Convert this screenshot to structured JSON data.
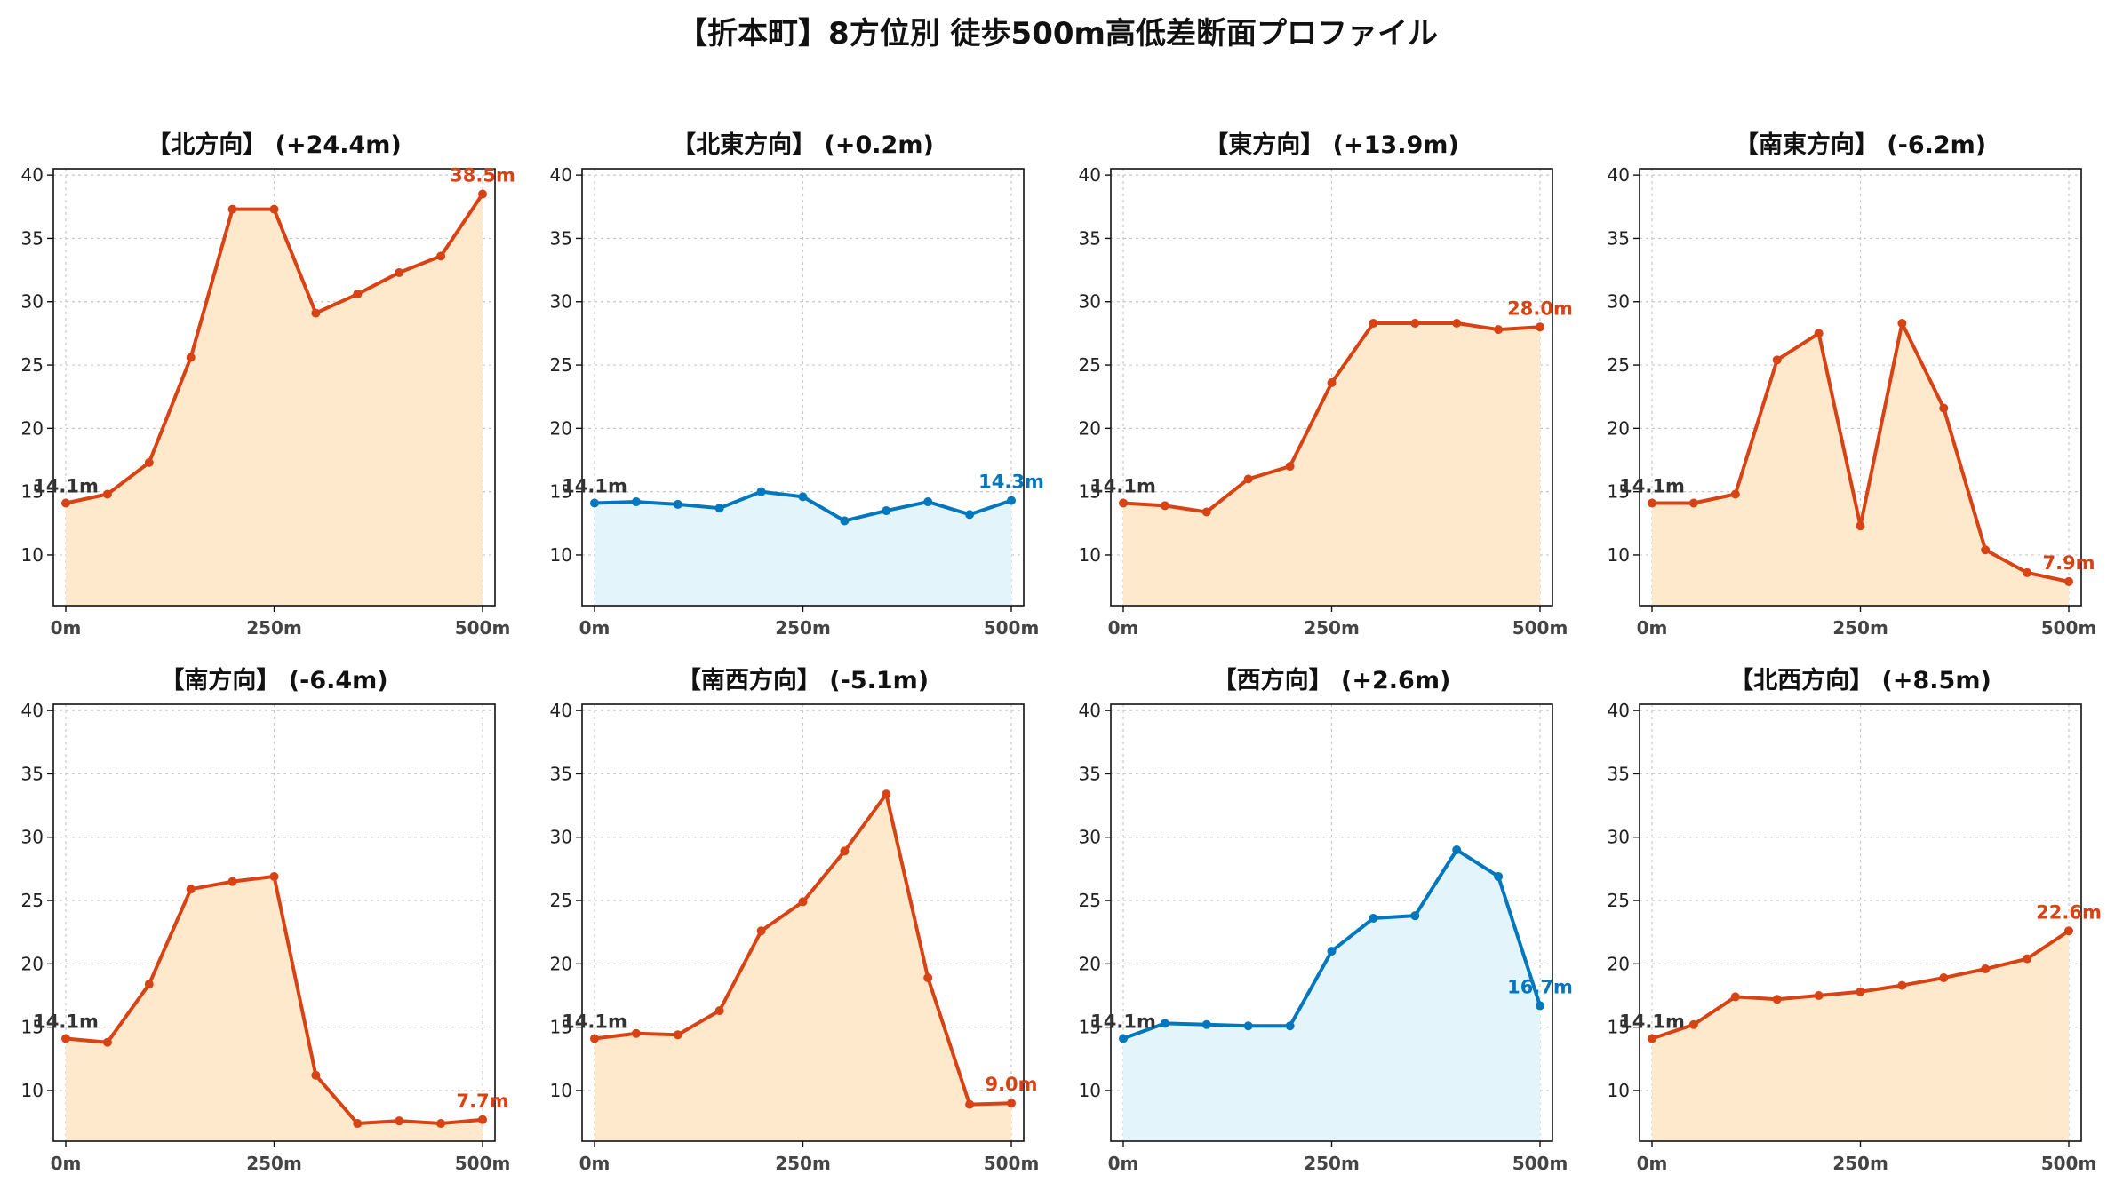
{
  "title": "【折本町】8方位別 徒歩500m高低差断面プロファイル",
  "colors": {
    "up_line": "#d84315",
    "up_fill": "#ffe9cc",
    "flat_line": "#0277bd",
    "flat_fill": "#e3f4fb",
    "start_label": "#333333"
  },
  "chart_data": [
    {
      "type": "area",
      "title": "【北方向】 (+24.4m)",
      "x": [
        0,
        50,
        100,
        150,
        200,
        250,
        300,
        350,
        400,
        450,
        500
      ],
      "values": [
        14.1,
        14.8,
        17.3,
        25.6,
        37.3,
        37.3,
        29.1,
        30.6,
        32.3,
        33.6,
        38.5
      ],
      "start_label": "14.1m",
      "end_label": "38.5m",
      "style": "up",
      "x_ticks": [
        "0m",
        "250m",
        "500m"
      ],
      "y_ticks": [
        10,
        15,
        20,
        25,
        30,
        35,
        40
      ],
      "ylim": [
        6,
        40.5
      ],
      "grid": true
    },
    {
      "type": "area",
      "title": "【北東方向】 (+0.2m)",
      "x": [
        0,
        50,
        100,
        150,
        200,
        250,
        300,
        350,
        400,
        450,
        500
      ],
      "values": [
        14.1,
        14.2,
        14.0,
        13.7,
        15.0,
        14.6,
        12.7,
        13.5,
        14.2,
        13.2,
        14.3
      ],
      "start_label": "14.1m",
      "end_label": "14.3m",
      "style": "flat",
      "x_ticks": [
        "0m",
        "250m",
        "500m"
      ],
      "y_ticks": [
        10,
        15,
        20,
        25,
        30,
        35,
        40
      ],
      "ylim": [
        6,
        40.5
      ],
      "grid": true
    },
    {
      "type": "area",
      "title": "【東方向】 (+13.9m)",
      "x": [
        0,
        50,
        100,
        150,
        200,
        250,
        300,
        350,
        400,
        450,
        500
      ],
      "values": [
        14.1,
        13.9,
        13.4,
        16.0,
        17.0,
        23.6,
        28.3,
        28.3,
        28.3,
        27.8,
        28.0
      ],
      "start_label": "14.1m",
      "end_label": "28.0m",
      "style": "up",
      "x_ticks": [
        "0m",
        "250m",
        "500m"
      ],
      "y_ticks": [
        10,
        15,
        20,
        25,
        30,
        35,
        40
      ],
      "ylim": [
        6,
        40.5
      ],
      "grid": true
    },
    {
      "type": "area",
      "title": "【南東方向】 (-6.2m)",
      "x": [
        0,
        50,
        100,
        150,
        200,
        250,
        300,
        350,
        400,
        450,
        500
      ],
      "values": [
        14.1,
        14.1,
        14.8,
        25.4,
        27.5,
        12.3,
        28.3,
        21.6,
        10.4,
        8.6,
        7.9
      ],
      "start_label": "14.1m",
      "end_label": "7.9m",
      "style": "up",
      "x_ticks": [
        "0m",
        "250m",
        "500m"
      ],
      "y_ticks": [
        10,
        15,
        20,
        25,
        30,
        35,
        40
      ],
      "ylim": [
        6,
        40.5
      ],
      "grid": true
    },
    {
      "type": "area",
      "title": "【南方向】 (-6.4m)",
      "x": [
        0,
        50,
        100,
        150,
        200,
        250,
        300,
        350,
        400,
        450,
        500
      ],
      "values": [
        14.1,
        13.8,
        18.4,
        25.9,
        26.5,
        26.9,
        11.2,
        7.4,
        7.6,
        7.4,
        7.7
      ],
      "start_label": "14.1m",
      "end_label": "7.7m",
      "style": "up",
      "x_ticks": [
        "0m",
        "250m",
        "500m"
      ],
      "y_ticks": [
        10,
        15,
        20,
        25,
        30,
        35,
        40
      ],
      "ylim": [
        6,
        40.5
      ],
      "grid": true
    },
    {
      "type": "area",
      "title": "【南西方向】 (-5.1m)",
      "x": [
        0,
        50,
        100,
        150,
        200,
        250,
        300,
        350,
        400,
        450,
        500
      ],
      "values": [
        14.1,
        14.5,
        14.4,
        16.3,
        22.6,
        24.9,
        28.9,
        33.4,
        18.9,
        8.9,
        9.0
      ],
      "start_label": "14.1m",
      "end_label": "9.0m",
      "style": "up",
      "x_ticks": [
        "0m",
        "250m",
        "500m"
      ],
      "y_ticks": [
        10,
        15,
        20,
        25,
        30,
        35,
        40
      ],
      "ylim": [
        6,
        40.5
      ],
      "grid": true
    },
    {
      "type": "area",
      "title": "【西方向】 (+2.6m)",
      "x": [
        0,
        50,
        100,
        150,
        200,
        250,
        300,
        350,
        400,
        450,
        500
      ],
      "values": [
        14.1,
        15.3,
        15.2,
        15.1,
        15.1,
        21.0,
        23.6,
        23.8,
        29.0,
        26.9,
        16.7
      ],
      "start_label": "14.1m",
      "end_label": "16.7m",
      "style": "flat",
      "x_ticks": [
        "0m",
        "250m",
        "500m"
      ],
      "y_ticks": [
        10,
        15,
        20,
        25,
        30,
        35,
        40
      ],
      "ylim": [
        6,
        40.5
      ],
      "grid": true
    },
    {
      "type": "area",
      "title": "【北西方向】 (+8.5m)",
      "x": [
        0,
        50,
        100,
        150,
        200,
        250,
        300,
        350,
        400,
        450,
        500
      ],
      "values": [
        14.1,
        15.2,
        17.4,
        17.2,
        17.5,
        17.8,
        18.3,
        18.9,
        19.6,
        20.4,
        22.6
      ],
      "start_label": "14.1m",
      "end_label": "22.6m",
      "style": "up",
      "x_ticks": [
        "0m",
        "250m",
        "500m"
      ],
      "y_ticks": [
        10,
        15,
        20,
        25,
        30,
        35,
        40
      ],
      "ylim": [
        6,
        40.5
      ],
      "grid": true
    }
  ]
}
